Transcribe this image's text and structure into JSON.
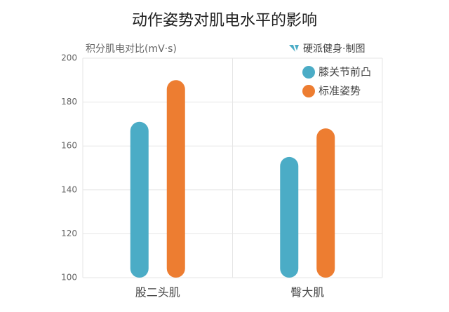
{
  "chart_data": {
    "type": "bar",
    "title": "动作姿势对肌电水平的影响",
    "y_label": "积分肌电对比(mV·s)",
    "source": "硬派健身·制图",
    "categories": [
      "股二头肌",
      "臀大肌"
    ],
    "series": [
      {
        "name": "膝关节前凸",
        "color": "#4bacc6",
        "values": [
          171,
          155
        ]
      },
      {
        "name": "标准姿势",
        "color": "#ed7d31",
        "values": [
          190,
          168
        ]
      }
    ],
    "ylim": [
      100,
      200
    ],
    "yticks": [
      100,
      120,
      140,
      160,
      180,
      200
    ],
    "grid": true,
    "legend": "top-right"
  }
}
